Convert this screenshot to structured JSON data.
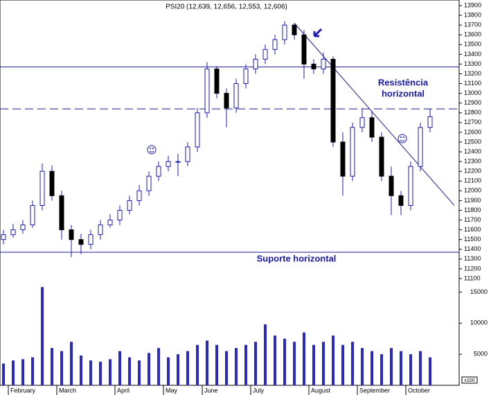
{
  "chart_data": {
    "type": "candlestick",
    "title": "PSI20 (12,639, 12,656, 12,553, 12,606)",
    "categories": [
      null,
      "February",
      null,
      null,
      null,
      null,
      "March",
      null,
      null,
      null,
      null,
      null,
      "April",
      null,
      null,
      null,
      null,
      "May",
      null,
      null,
      null,
      "June",
      null,
      null,
      null,
      null,
      "July",
      null,
      null,
      null,
      null,
      null,
      "August",
      null,
      null,
      null,
      null,
      "September",
      null,
      null,
      null,
      null,
      "October",
      null,
      null
    ],
    "open": [
      11500,
      11550,
      11600,
      11650,
      11850,
      12200,
      11950,
      11600,
      11500,
      11450,
      11550,
      11650,
      11700,
      11800,
      11900,
      12000,
      12150,
      12250,
      12300,
      12300,
      12450,
      12800,
      13250,
      13000,
      12850,
      13100,
      13250,
      13350,
      13450,
      13550,
      13700,
      13600,
      13300,
      13250,
      13350,
      12500,
      12150,
      12650,
      12750,
      12550,
      12150,
      11950,
      11850,
      12250,
      12650
    ],
    "high": [
      11600,
      11660,
      11700,
      11900,
      12280,
      12260,
      12000,
      11650,
      11560,
      11600,
      11700,
      11760,
      11850,
      11950,
      12060,
      12200,
      12300,
      12360,
      12380,
      12500,
      12850,
      13320,
      13280,
      13050,
      13150,
      13300,
      13400,
      13500,
      13600,
      13740,
      13720,
      13650,
      13350,
      13420,
      13380,
      12600,
      12700,
      12850,
      12820,
      12600,
      12250,
      12000,
      12300,
      12700,
      12840
    ],
    "low": [
      11450,
      11520,
      11560,
      11620,
      11800,
      11900,
      11500,
      11320,
      11350,
      11400,
      11500,
      11620,
      11650,
      11760,
      11850,
      11950,
      12100,
      12200,
      12150,
      12250,
      12400,
      12750,
      12950,
      12650,
      12800,
      13050,
      13200,
      13300,
      13400,
      13500,
      13550,
      13150,
      13200,
      13200,
      12450,
      11950,
      12100,
      12600,
      12500,
      12100,
      11750,
      11750,
      11800,
      12200,
      12600
    ],
    "close": [
      11550,
      11600,
      11650,
      11850,
      12200,
      11950,
      11600,
      11500,
      11450,
      11550,
      11650,
      11700,
      11800,
      11900,
      12000,
      12150,
      12250,
      12300,
      12300,
      12450,
      12800,
      13250,
      13000,
      12850,
      13100,
      13250,
      13350,
      13450,
      13550,
      13700,
      13600,
      13300,
      13250,
      13350,
      12500,
      12150,
      12650,
      12750,
      12550,
      12150,
      11950,
      11850,
      12250,
      12650,
      12760
    ],
    "up_color": "#ffffff",
    "down_color": "#000000",
    "edge_color": "#1a1ab0",
    "ylim": [
      11050,
      13950
    ],
    "yticks": [
      11100,
      11200,
      11300,
      11400,
      11500,
      11600,
      11700,
      11800,
      11900,
      12000,
      12100,
      12200,
      12300,
      12400,
      12500,
      12600,
      12700,
      12800,
      12900,
      13000,
      13100,
      13200,
      13300,
      13400,
      13500,
      13600,
      13700,
      13800,
      13900
    ],
    "hlines": [
      {
        "value": 13270,
        "style": "solid"
      },
      {
        "value": 12840,
        "style": "dashed"
      },
      {
        "value": 11370,
        "style": "solid"
      }
    ],
    "line_color": "#1a1a8c",
    "trendline": {
      "x": [
        30,
        46.5
      ],
      "y": [
        13720,
        11850
      ]
    },
    "annotations": [
      "Resistência",
      "horizontal",
      "Suporte horizontal"
    ],
    "volume": {
      "values": [
        3500,
        4000,
        4200,
        4500,
        15800,
        6000,
        5500,
        7000,
        4800,
        4000,
        3800,
        4200,
        5500,
        4500,
        4000,
        5200,
        6000,
        4500,
        5000,
        5500,
        6500,
        7200,
        6500,
        5500,
        6000,
        6500,
        7000,
        9800,
        8000,
        7500,
        7000,
        8500,
        6500,
        7000,
        8000,
        6500,
        7000,
        6000,
        5500,
        5000,
        6000,
        5500,
        5000,
        5500,
        4500
      ],
      "color": "#2a2ac0",
      "ylim": [
        0,
        16500
      ],
      "yticks": [
        5000,
        10000,
        15000
      ],
      "unit_label": "x100"
    }
  }
}
